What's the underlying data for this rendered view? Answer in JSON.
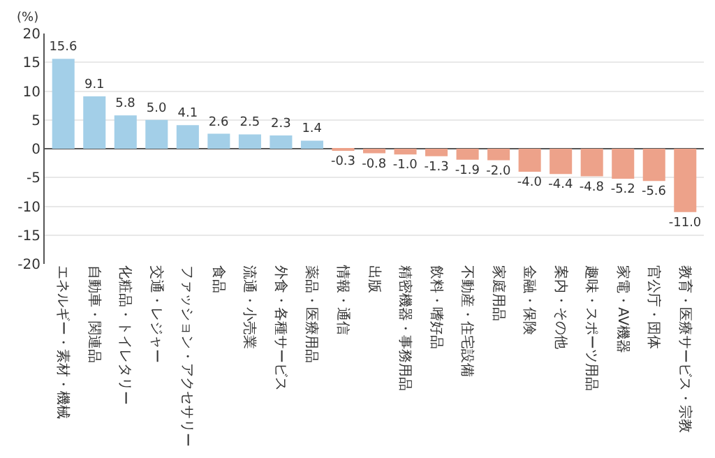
{
  "chart_data": {
    "type": "bar",
    "ylabel": "(%)",
    "categories": [
      "エネルギー・素材・機械",
      "自動車・関連品",
      "化粧品・トイレタリー",
      "交通・レジャー",
      "ファッション・アクセサリー",
      "食品",
      "流通・小売業",
      "外食・各種サービス",
      "薬品・医療用品",
      "情報・通信",
      "出版",
      "精密機器・事務用品",
      "飲料・嗜好品",
      "不動産・住宅設備",
      "家庭用品",
      "金融・保険",
      "案内・その他",
      "趣味・スポーツ用品",
      "家電・AV機器",
      "官公庁・団体",
      "教育・医療サービス・宗教"
    ],
    "values": [
      15.6,
      9.1,
      5.8,
      5.0,
      4.1,
      2.6,
      2.5,
      2.3,
      1.4,
      -0.3,
      -0.8,
      -1.0,
      -1.3,
      -1.9,
      -2.0,
      -4.0,
      -4.4,
      -4.8,
      -5.2,
      -5.6,
      -11.0
    ],
    "colors": [
      "#a3cfe8",
      "#a3cfe8",
      "#a3cfe8",
      "#a3cfe8",
      "#a3cfe8",
      "#a3cfe8",
      "#a3cfe8",
      "#a3cfe8",
      "#a3cfe8",
      "#eda28a",
      "#eda28a",
      "#eda28a",
      "#eda28a",
      "#eda28a",
      "#eda28a",
      "#eda28a",
      "#eda28a",
      "#eda28a",
      "#eda28a",
      "#eda28a",
      "#eda28a"
    ],
    "ylim": [
      -20,
      20
    ],
    "yticks": [
      -20,
      -15,
      -10,
      -5,
      0,
      5,
      10,
      15,
      20
    ],
    "grid": "y",
    "value_labels": [
      "15.6",
      "9.1",
      "5.8",
      "5.0",
      "4.1",
      "2.6",
      "2.5",
      "2.3",
      "1.4",
      "-0.3",
      "-0.8",
      "-1.0",
      "-1.3",
      "-1.9",
      "-2.0",
      "-4.0",
      "-4.4",
      "-4.8",
      "-5.2",
      "-5.6",
      "-11.0"
    ]
  }
}
